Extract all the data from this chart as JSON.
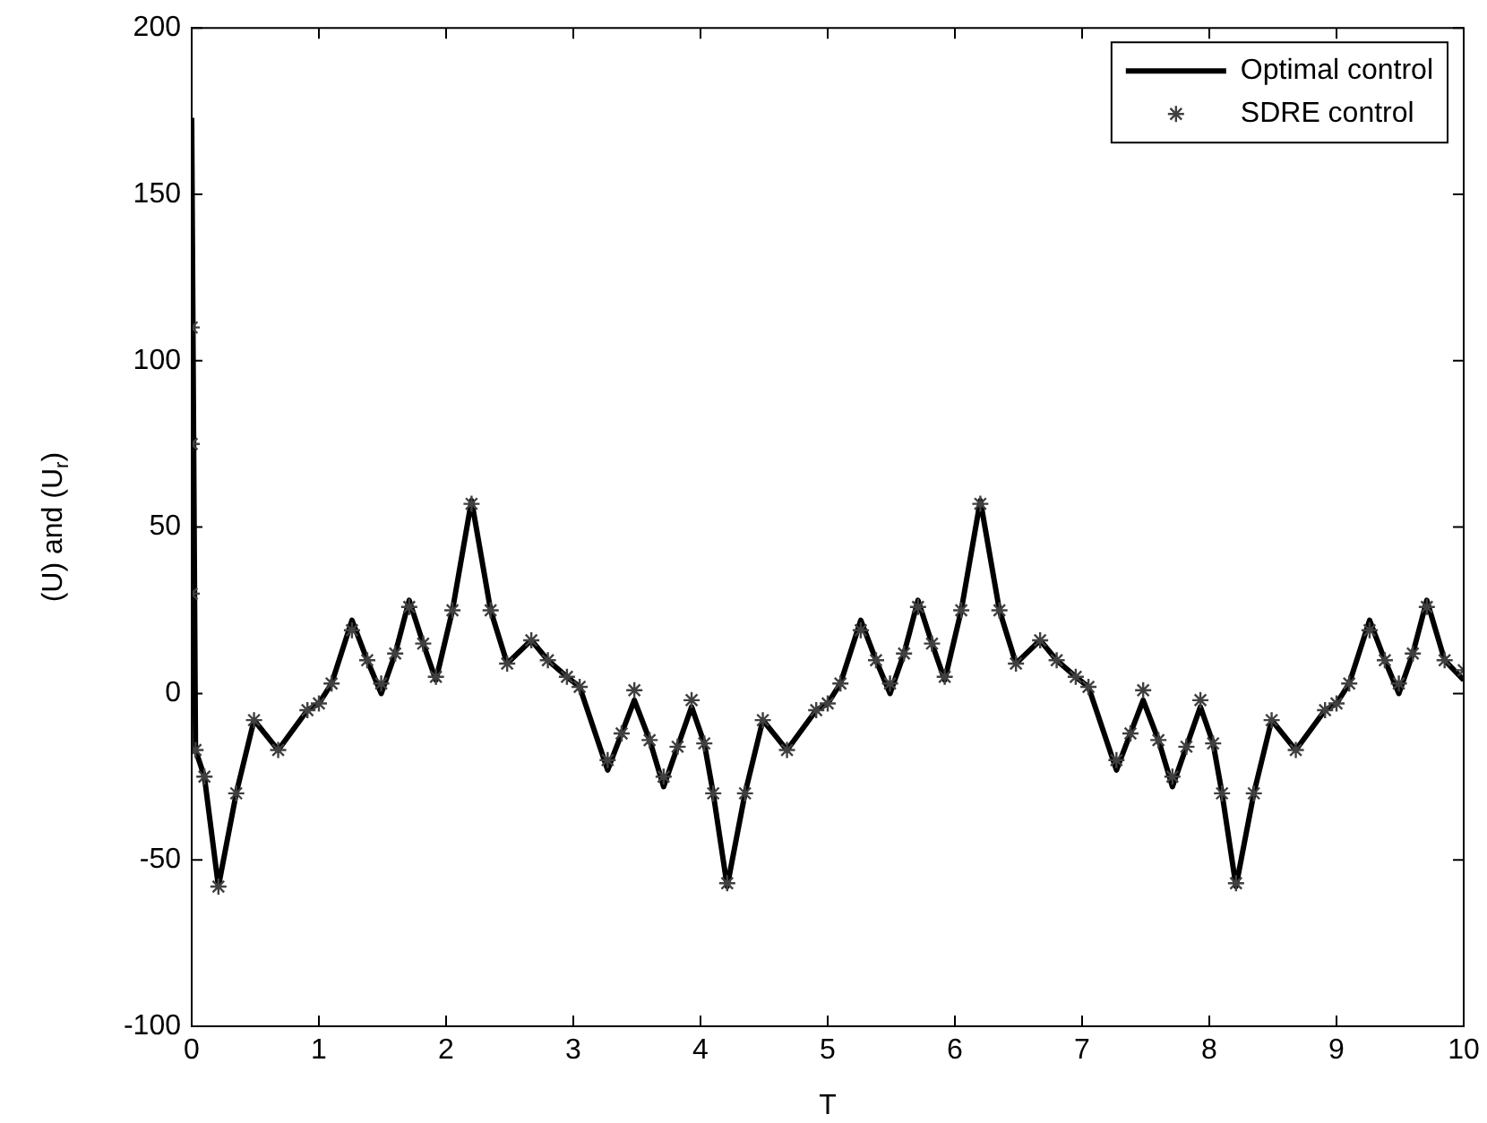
{
  "chart_data": {
    "type": "line",
    "xlabel": "T",
    "ylabel": "(U) and (U$_{r}$)",
    "xlim": [
      0,
      10
    ],
    "xticks": [
      0,
      1,
      2,
      3,
      4,
      5,
      6,
      7,
      8,
      9,
      10
    ],
    "ylim": [
      -100,
      200
    ],
    "yticks": [
      -100,
      -50,
      0,
      50,
      100,
      150,
      200
    ],
    "grid": false,
    "legend": "top right",
    "series": [
      {
        "name": "Optimal control",
        "type": "line",
        "color": "#000000",
        "marker": "none",
        "line_style": "solid",
        "x": [
          0,
          0.03,
          0.1,
          0.21,
          0.35,
          0.49,
          0.68,
          0.91,
          1.0,
          1.1,
          1.26,
          1.38,
          1.49,
          1.6,
          1.71,
          1.82,
          1.92,
          2.05,
          2.2,
          2.35,
          2.48,
          2.67,
          2.8,
          2.95,
          3.05,
          3.27,
          3.38,
          3.48,
          3.6,
          3.71,
          3.82,
          3.93,
          4.03,
          4.1,
          4.21,
          4.35,
          4.49,
          4.68,
          4.91,
          5.0,
          5.1,
          5.26,
          5.38,
          5.49,
          5.6,
          5.71,
          5.82,
          5.92,
          6.05,
          6.2,
          6.35,
          6.48,
          6.67,
          6.8,
          6.95,
          7.05,
          7.27,
          7.38,
          7.48,
          7.6,
          7.71,
          7.82,
          7.93,
          8.03,
          8.1,
          8.21,
          8.35,
          8.49,
          8.68,
          8.91,
          9.0,
          9.1,
          9.26,
          9.38,
          9.49,
          9.6,
          9.71,
          9.85,
          10
        ],
        "values": [
          173,
          -17,
          -25,
          -58,
          -30,
          -8,
          -17,
          -5,
          -3,
          3,
          22,
          10,
          0,
          12,
          28,
          15,
          4,
          25,
          58,
          25,
          9,
          16,
          10,
          5,
          2,
          -23,
          -12,
          -2,
          -14,
          -28,
          -16,
          -4,
          -15,
          -30,
          -58,
          -30,
          -8,
          -17,
          -5,
          -3,
          3,
          22,
          10,
          0,
          12,
          28,
          15,
          4,
          25,
          58,
          25,
          9,
          16,
          10,
          5,
          2,
          -23,
          -12,
          -2,
          -14,
          -28,
          -16,
          -4,
          -15,
          -30,
          -58,
          -30,
          -8,
          -17,
          -5,
          -3,
          3,
          22,
          10,
          0,
          12,
          28,
          10,
          4
        ]
      },
      {
        "name": "SDRE control",
        "type": "scatter",
        "color": "#404040",
        "marker": "cross",
        "x": [
          0,
          0,
          0,
          0.03,
          0.1,
          0.21,
          0.35,
          0.49,
          0.68,
          0.91,
          1.0,
          1.1,
          1.26,
          1.38,
          1.49,
          1.6,
          1.71,
          1.82,
          1.92,
          2.05,
          2.2,
          2.35,
          2.48,
          2.67,
          2.8,
          2.95,
          3.05,
          3.27,
          3.38,
          3.48,
          3.6,
          3.71,
          3.82,
          3.93,
          4.03,
          4.1,
          4.21,
          4.35,
          4.49,
          4.68,
          4.91,
          5.0,
          5.1,
          5.26,
          5.38,
          5.49,
          5.6,
          5.71,
          5.82,
          5.92,
          6.05,
          6.2,
          6.35,
          6.48,
          6.67,
          6.8,
          6.95,
          7.05,
          7.27,
          7.38,
          7.48,
          7.6,
          7.71,
          7.82,
          7.93,
          8.03,
          8.1,
          8.21,
          8.35,
          8.49,
          8.68,
          8.91,
          9.0,
          9.1,
          9.26,
          9.38,
          9.49,
          9.6,
          9.71,
          9.85,
          10
        ],
        "values": [
          110,
          75,
          30,
          -17,
          -25,
          -58,
          -30,
          -8,
          -17,
          -5,
          -3,
          3,
          19,
          10,
          3,
          12,
          26,
          15,
          5,
          25,
          57,
          25,
          9,
          16,
          10,
          5,
          2,
          -20,
          -12,
          1,
          -14,
          -25,
          -16,
          -2,
          -15,
          -30,
          -57,
          -30,
          -8,
          -17,
          -5,
          -3,
          3,
          19,
          10,
          3,
          12,
          26,
          15,
          5,
          25,
          57,
          25,
          9,
          16,
          10,
          5,
          2,
          -20,
          -12,
          1,
          -14,
          -25,
          -16,
          -2,
          -15,
          -30,
          -57,
          -30,
          -8,
          -17,
          -5,
          -3,
          3,
          19,
          10,
          3,
          12,
          26,
          10,
          7
        ]
      }
    ]
  }
}
